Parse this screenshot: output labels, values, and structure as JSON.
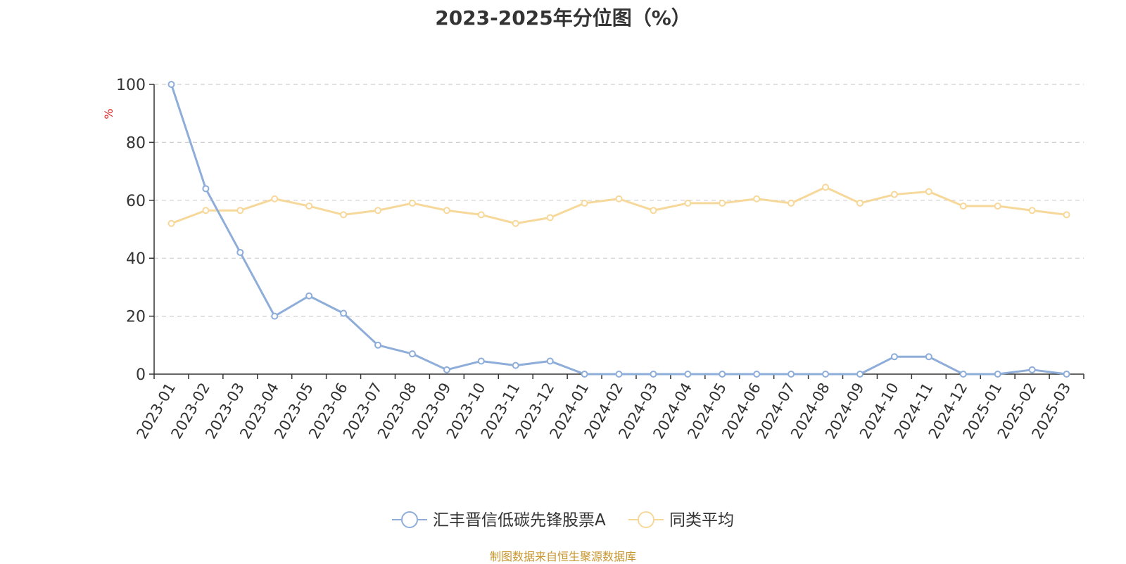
{
  "chart_data": {
    "type": "line",
    "title": "2023-2025年分位图（%）",
    "ylabel": "%",
    "xlabel": "",
    "ylim": [
      0,
      100
    ],
    "yticks": [
      0,
      20,
      40,
      60,
      80,
      100
    ],
    "grid": true,
    "legend_position": "bottom-center",
    "categories": [
      "2023-01",
      "2023-02",
      "2023-03",
      "2023-04",
      "2023-05",
      "2023-06",
      "2023-07",
      "2023-08",
      "2023-09",
      "2023-10",
      "2023-11",
      "2023-12",
      "2024-01",
      "2024-02",
      "2024-03",
      "2024-04",
      "2024-05",
      "2024-06",
      "2024-07",
      "2024-08",
      "2024-09",
      "2024-10",
      "2024-11",
      "2024-12",
      "2025-01",
      "2025-02",
      "2025-03"
    ],
    "series": [
      {
        "name": "汇丰晋信低碳先锋股票A",
        "color": "#8eadd9",
        "values": [
          100,
          64,
          42,
          20,
          27,
          21,
          10,
          7,
          1.5,
          4.5,
          3,
          4.5,
          0,
          0,
          0,
          0,
          0,
          0,
          0,
          0,
          0,
          6,
          6,
          0,
          0,
          1.5,
          0
        ]
      },
      {
        "name": "同类平均",
        "color": "#f7d89b",
        "values": [
          52,
          56.5,
          56.5,
          60.5,
          58,
          55,
          56.5,
          59,
          56.5,
          55,
          52,
          54,
          59,
          60.5,
          56.5,
          59,
          59,
          60.5,
          59,
          64.5,
          59,
          62,
          63,
          58,
          58,
          56.5,
          55
        ]
      }
    ],
    "source": "制图数据来自恒生聚源数据库"
  }
}
